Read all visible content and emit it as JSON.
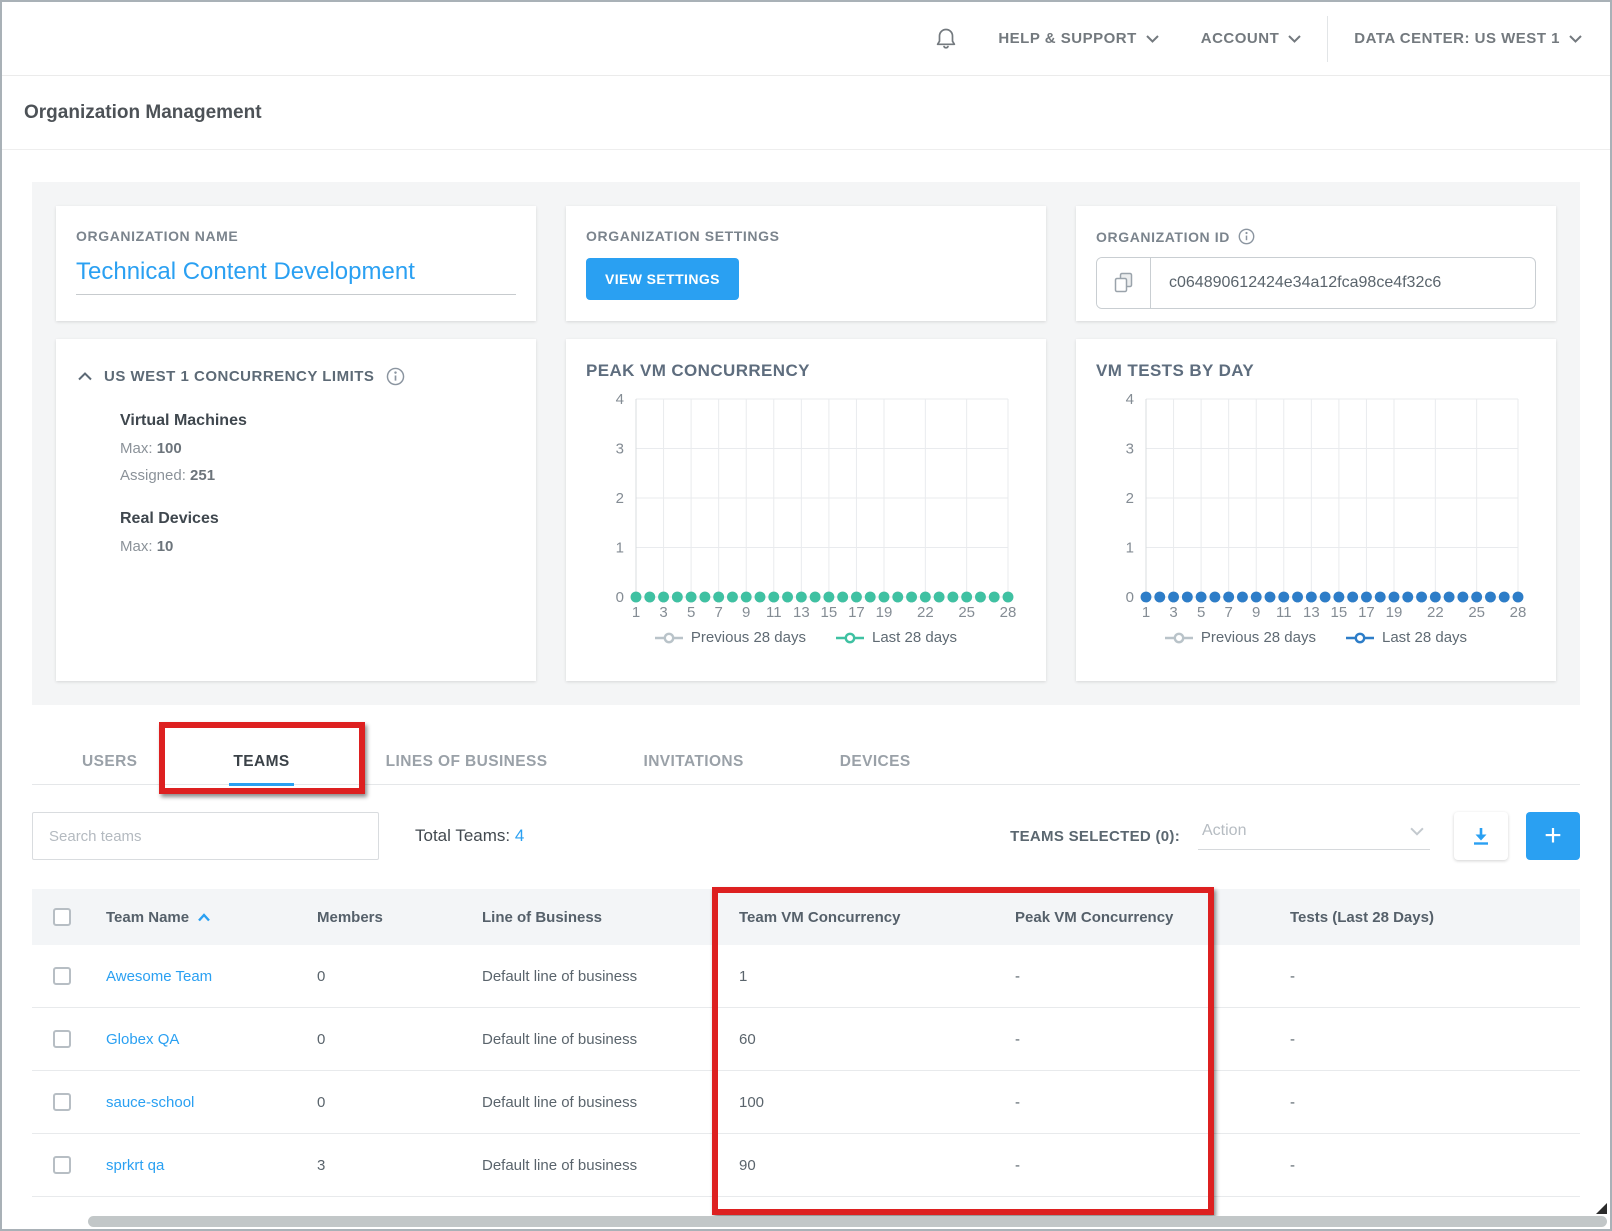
{
  "topnav": {
    "help": "HELP & SUPPORT",
    "account": "ACCOUNT",
    "datacenter": "DATA CENTER: US WEST 1"
  },
  "page": {
    "title": "Organization Management"
  },
  "cards": {
    "org_name": {
      "label": "ORGANIZATION NAME",
      "value": "Technical Content Development"
    },
    "org_settings": {
      "label": "ORGANIZATION SETTINGS",
      "button": "VIEW SETTINGS"
    },
    "org_id": {
      "label": "ORGANIZATION ID",
      "value": "c064890612424e34a12fca98ce4f32c6"
    },
    "concurrency": {
      "title": "US WEST 1 CONCURRENCY LIMITS",
      "vm_title": "Virtual Machines",
      "vm_max_label": "Max:",
      "vm_max": "100",
      "vm_assigned_label": "Assigned:",
      "vm_assigned": "251",
      "rd_title": "Real Devices",
      "rd_max_label": "Max:",
      "rd_max": "10"
    }
  },
  "chart_data": [
    {
      "type": "line",
      "title": "PEAK VM CONCURRENCY",
      "x": [
        1,
        2,
        3,
        4,
        5,
        6,
        7,
        8,
        9,
        10,
        11,
        12,
        13,
        14,
        15,
        16,
        17,
        18,
        19,
        20,
        21,
        22,
        23,
        24,
        25,
        26,
        27,
        28
      ],
      "series": [
        {
          "name": "Previous 28 days",
          "color": "#b9c3c9",
          "values": [
            0,
            0,
            0,
            0,
            0,
            0,
            0,
            0,
            0,
            0,
            0,
            0,
            0,
            0,
            0,
            0,
            0,
            0,
            0,
            0,
            0,
            0,
            0,
            0,
            0,
            0,
            0,
            0
          ]
        },
        {
          "name": "Last 28 days",
          "color": "#3fc1a2",
          "values": [
            0,
            0,
            0,
            0,
            0,
            0,
            0,
            0,
            0,
            0,
            0,
            0,
            0,
            0,
            0,
            0,
            0,
            0,
            0,
            0,
            0,
            0,
            0,
            0,
            0,
            0,
            0,
            0
          ]
        }
      ],
      "xticks": [
        1,
        3,
        5,
        7,
        9,
        11,
        13,
        15,
        17,
        19,
        22,
        25,
        28
      ],
      "yticks": [
        0,
        1,
        2,
        3,
        4
      ],
      "ylim": [
        0,
        4
      ],
      "grid": true,
      "legend_position": "bottom"
    },
    {
      "type": "line",
      "title": "VM TESTS BY DAY",
      "x": [
        1,
        2,
        3,
        4,
        5,
        6,
        7,
        8,
        9,
        10,
        11,
        12,
        13,
        14,
        15,
        16,
        17,
        18,
        19,
        20,
        21,
        22,
        23,
        24,
        25,
        26,
        27,
        28
      ],
      "series": [
        {
          "name": "Previous 28 days",
          "color": "#b9c3c9",
          "values": [
            0,
            0,
            0,
            0,
            0,
            0,
            0,
            0,
            0,
            0,
            0,
            0,
            0,
            0,
            0,
            0,
            0,
            0,
            0,
            0,
            0,
            0,
            0,
            0,
            0,
            0,
            0,
            0
          ]
        },
        {
          "name": "Last 28 days",
          "color": "#2d7dc8",
          "values": [
            0,
            0,
            0,
            0,
            0,
            0,
            0,
            0,
            0,
            0,
            0,
            0,
            0,
            0,
            0,
            0,
            0,
            0,
            0,
            0,
            0,
            0,
            0,
            0,
            0,
            0,
            0,
            0
          ]
        }
      ],
      "xticks": [
        1,
        3,
        5,
        7,
        9,
        11,
        13,
        15,
        17,
        19,
        22,
        25,
        28
      ],
      "yticks": [
        0,
        1,
        2,
        3,
        4
      ],
      "ylim": [
        0,
        4
      ],
      "grid": true,
      "legend_position": "bottom"
    }
  ],
  "tabs": [
    {
      "label": "USERS",
      "active": false
    },
    {
      "label": "TEAMS",
      "active": true
    },
    {
      "label": "LINES OF BUSINESS",
      "active": false
    },
    {
      "label": "INVITATIONS",
      "active": false
    },
    {
      "label": "DEVICES",
      "active": false
    }
  ],
  "toolbar": {
    "search_placeholder": "Search teams",
    "total_label": "Total Teams:",
    "total_value": "4",
    "selected_label": "TEAMS SELECTED (0):",
    "action_placeholder": "Action"
  },
  "table": {
    "columns": [
      "Team Name",
      "Members",
      "Line of Business",
      "Team VM Concurrency",
      "Peak VM Concurrency",
      "Tests (Last 28 Days)"
    ],
    "rows": [
      {
        "name": "Awesome Team",
        "members": "0",
        "lob": "Default line of business",
        "team_vm": "1",
        "peak_vm": "-",
        "tests": "-"
      },
      {
        "name": "Globex QA",
        "members": "0",
        "lob": "Default line of business",
        "team_vm": "60",
        "peak_vm": "-",
        "tests": "-"
      },
      {
        "name": "sauce-school",
        "members": "0",
        "lob": "Default line of business",
        "team_vm": "100",
        "peak_vm": "-",
        "tests": "-"
      },
      {
        "name": "sprkrt qa",
        "members": "3",
        "lob": "Default line of business",
        "team_vm": "90",
        "peak_vm": "-",
        "tests": "-"
      }
    ]
  },
  "colors": {
    "accent_blue": "#2aa0f2",
    "chart_green": "#3fc1a2",
    "chart_blue": "#2d7dc8",
    "legend_gray": "#b9c3c9",
    "annotation_red": "#dd2020"
  }
}
